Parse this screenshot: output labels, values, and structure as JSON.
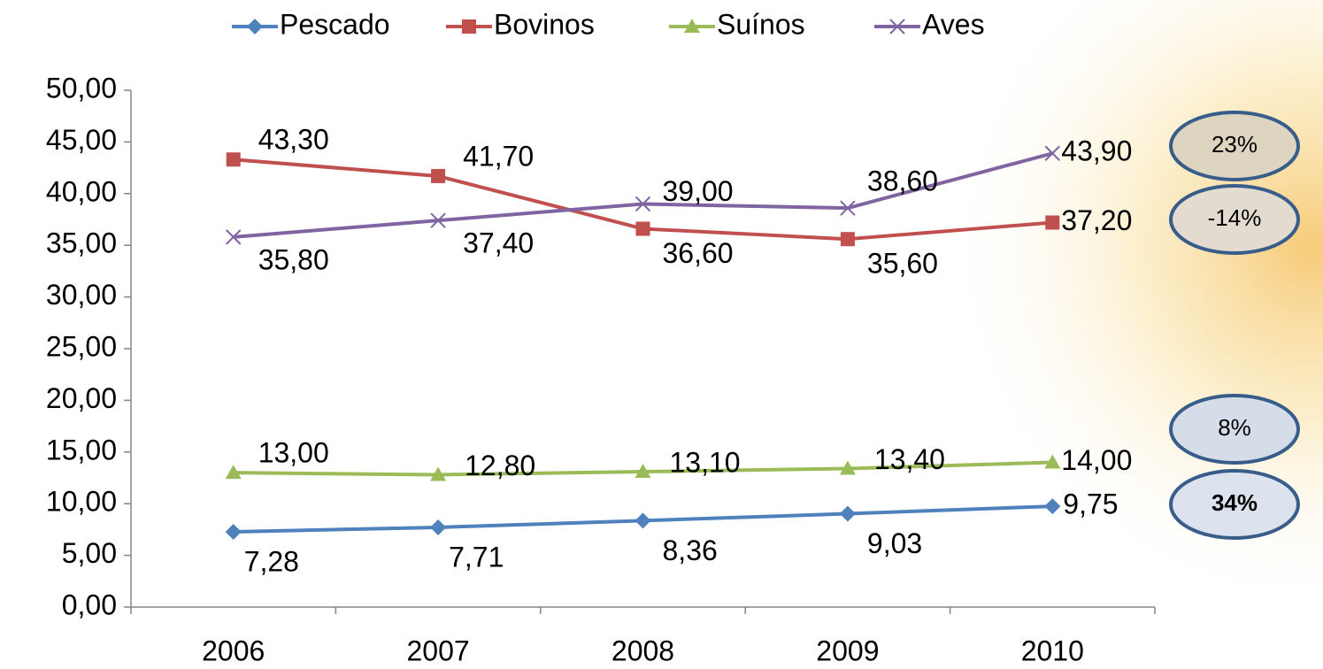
{
  "chart_data": {
    "type": "line",
    "categories": [
      "2006",
      "2007",
      "2008",
      "2009",
      "2010"
    ],
    "series": [
      {
        "name": "Pescado",
        "color": "#4f81bd",
        "marker": "diamond",
        "values": [
          7.28,
          7.71,
          8.36,
          9.03,
          9.75
        ],
        "value_labels": [
          "7,28",
          "7,71",
          "8,36",
          "9,03",
          "9,75"
        ]
      },
      {
        "name": "Bovinos",
        "color": "#c0504d",
        "marker": "square",
        "values": [
          43.3,
          41.7,
          36.6,
          35.6,
          37.2
        ],
        "value_labels": [
          "43,30",
          "41,70",
          "36,60",
          "35,60",
          "37,20"
        ]
      },
      {
        "name": "Suínos",
        "color": "#9bbb59",
        "marker": "triangle",
        "values": [
          13.0,
          12.8,
          13.1,
          13.4,
          14.0
        ],
        "value_labels": [
          "13,00",
          "12,80",
          "13,10",
          "13,40",
          "14,00"
        ]
      },
      {
        "name": "Aves",
        "color": "#8064a2",
        "marker": "x",
        "values": [
          35.8,
          37.4,
          39.0,
          38.6,
          43.9
        ],
        "value_labels": [
          "35,80",
          "37,40",
          "39,00",
          "38,60",
          "43,90"
        ]
      }
    ],
    "ylim": [
      0,
      50
    ],
    "yticks": [
      {
        "value": 0,
        "label": "0,00"
      },
      {
        "value": 5,
        "label": "5,00"
      },
      {
        "value": 10,
        "label": "10,00"
      },
      {
        "value": 15,
        "label": "15,00"
      },
      {
        "value": 20,
        "label": "20,00"
      },
      {
        "value": 25,
        "label": "25,00"
      },
      {
        "value": 30,
        "label": "30,00"
      },
      {
        "value": 35,
        "label": "35,00"
      },
      {
        "value": 40,
        "label": "40,00"
      },
      {
        "value": 45,
        "label": "45,00"
      },
      {
        "value": 50,
        "label": "50,00"
      }
    ],
    "legend": "top",
    "annotations": [
      "23%",
      "-14%",
      "8%",
      "34%"
    ]
  }
}
